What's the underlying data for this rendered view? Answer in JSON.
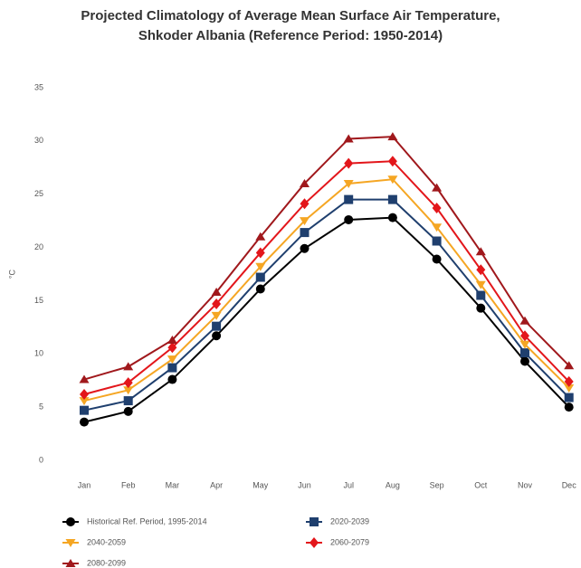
{
  "chart_data": {
    "type": "line",
    "title": [
      "Projected Climatology of Average Mean Surface Air Temperature,",
      "Shkoder Albania (Reference Period: 1950-2014)"
    ],
    "y_label": "°C",
    "categories": [
      "Jan",
      "Feb",
      "Mar",
      "Apr",
      "May",
      "Jun",
      "Jul",
      "Aug",
      "Sep",
      "Oct",
      "Nov",
      "Dec"
    ],
    "ylim": [
      0,
      35
    ],
    "yticks": [
      0,
      5,
      10,
      15,
      20,
      25,
      30,
      35
    ],
    "grid": false,
    "legend": "bottom",
    "series": [
      {
        "name": "Historical Ref. Period, 1995-2014",
        "color": "#000000",
        "marker": "circle",
        "values": [
          3.6,
          4.6,
          7.6,
          11.7,
          16.1,
          19.9,
          22.6,
          22.8,
          18.9,
          14.3,
          9.3,
          5.0
        ]
      },
      {
        "name": "2020-2039",
        "color": "#1f3f6e",
        "marker": "square",
        "values": [
          4.7,
          5.6,
          8.7,
          12.6,
          17.2,
          21.4,
          24.5,
          24.5,
          20.6,
          15.5,
          10.1,
          5.9
        ]
      },
      {
        "name": "2040-2059",
        "color": "#f5a623",
        "marker": "triangle-down",
        "values": [
          5.6,
          6.6,
          9.5,
          13.6,
          18.2,
          22.5,
          26.0,
          26.4,
          21.9,
          16.5,
          10.9,
          6.8
        ]
      },
      {
        "name": "2060-2079",
        "color": "#e3161b",
        "marker": "diamond",
        "values": [
          6.2,
          7.3,
          10.6,
          14.7,
          19.5,
          24.1,
          27.9,
          28.1,
          23.7,
          17.9,
          11.7,
          7.4
        ]
      },
      {
        "name": "2080-2099",
        "color": "#a0181c",
        "marker": "triangle",
        "values": [
          7.6,
          8.8,
          11.3,
          15.8,
          21.0,
          26.0,
          30.2,
          30.4,
          25.6,
          19.6,
          13.1,
          8.9
        ]
      }
    ]
  }
}
